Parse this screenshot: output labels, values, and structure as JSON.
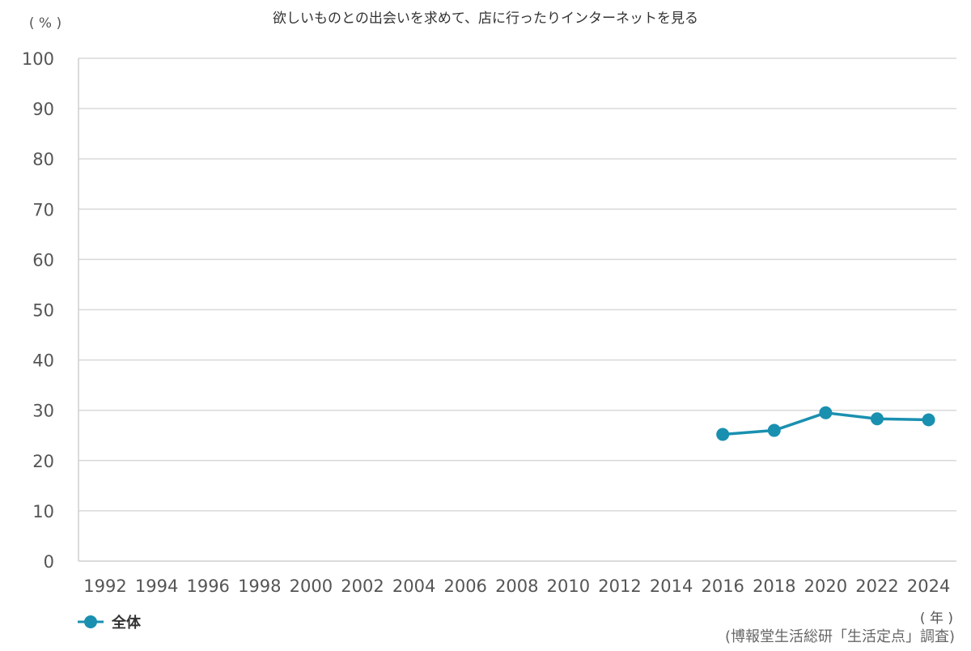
{
  "chart_data": {
    "type": "line",
    "title": "欲しいものとの出会いを求めて、店に行ったりインターネットを見る",
    "ylabel": "( % )",
    "xlabel": "( 年 )",
    "source": "(博報堂生活総研「生活定点」調査)",
    "ylim": [
      0,
      100
    ],
    "y_ticks": [
      0,
      10,
      20,
      30,
      40,
      50,
      60,
      70,
      80,
      90,
      100
    ],
    "x_ticks": [
      "1992",
      "1994",
      "1996",
      "1998",
      "2000",
      "2002",
      "2004",
      "2006",
      "2008",
      "2010",
      "2012",
      "2014",
      "2016",
      "2018",
      "2020",
      "2022",
      "2024"
    ],
    "grid": true,
    "legend_position": "bottom-left",
    "series": [
      {
        "name": "全体",
        "color": "#1a90b0",
        "x": [
          "2016",
          "2018",
          "2020",
          "2022",
          "2024"
        ],
        "values": [
          25.2,
          26.0,
          29.5,
          28.3,
          28.1
        ]
      }
    ]
  }
}
